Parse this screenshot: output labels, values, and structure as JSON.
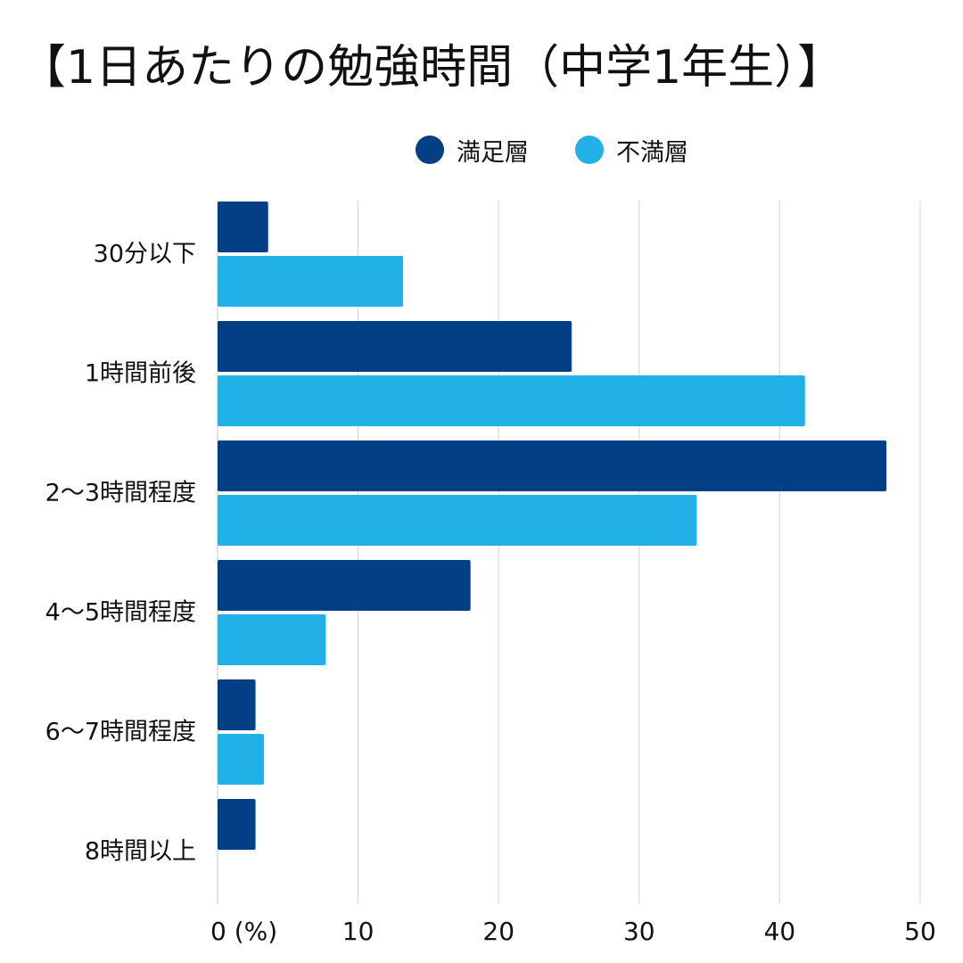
{
  "title": "【1日あたりの勉強時間（中学1年生）】",
  "legend": [
    {
      "label": "満足層",
      "color": "#033F85"
    },
    {
      "label": "不満層",
      "color": "#22B1E6"
    }
  ],
  "chart_data": {
    "type": "bar",
    "orientation": "horizontal",
    "title": "【1日あたりの勉強時間（中学1年生）】",
    "categories": [
      "30分以下",
      "1時間前後",
      "2〜3時間程度",
      "4〜5時間程度",
      "6〜7時間程度",
      "8時間以上"
    ],
    "series": [
      {
        "name": "満足層",
        "color": "#033F85",
        "values": [
          3.6,
          25.2,
          47.6,
          18.0,
          2.7,
          2.7
        ]
      },
      {
        "name": "不満層",
        "color": "#22B1E6",
        "values": [
          13.2,
          41.8,
          34.1,
          7.7,
          3.3,
          0
        ]
      }
    ],
    "x_ticks": [
      "0 (%)",
      "10",
      "20",
      "30",
      "40",
      "50"
    ],
    "xlim": [
      0,
      50
    ],
    "grid": true,
    "legend_position": "top"
  }
}
